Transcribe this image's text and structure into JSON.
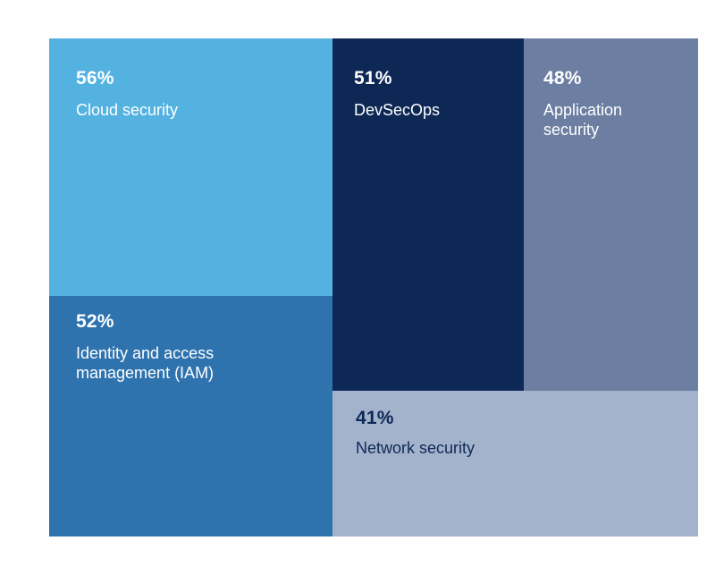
{
  "chart_data": {
    "type": "treemap",
    "title": "",
    "items": [
      {
        "label": "Cloud security",
        "value": 56,
        "value_label": "56%",
        "color": "#54B2E1",
        "text_color": "#FFFFFF"
      },
      {
        "label": "Identity and access management (IAM)",
        "value": 52,
        "value_label": "52%",
        "color": "#2E72AE",
        "text_color": "#FFFFFF"
      },
      {
        "label": "DevSecOps",
        "value": 51,
        "value_label": "51%",
        "color": "#0E2856",
        "text_color": "#FFFFFF"
      },
      {
        "label": "Application security",
        "value": 48,
        "value_label": "48%",
        "color": "#6C7EA1",
        "text_color": "#FFFFFF"
      },
      {
        "label": "Network security",
        "value": 41,
        "value_label": "41%",
        "color": "#A3B3CC",
        "text_color": "#0E2856"
      }
    ]
  }
}
